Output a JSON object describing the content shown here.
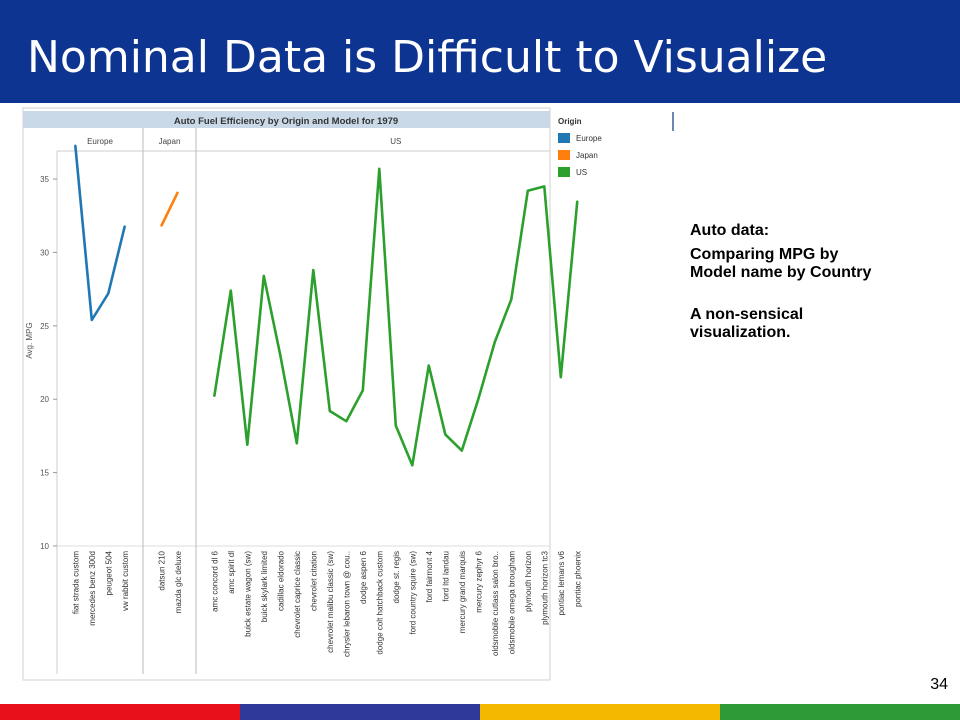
{
  "slide": {
    "title": "Nominal Data is Difficult to Visualize",
    "page_number": "34",
    "notes": [
      "Auto data:",
      "Comparing MPG by Model name by Country",
      "A non-sensical visualization."
    ],
    "footer_colors": [
      "#e8101a",
      "#2e3a9a",
      "#f5b800",
      "#2e9a36"
    ],
    "header_color": "#0d3490"
  },
  "chart_data": {
    "type": "line",
    "title": "Auto Fuel Efficiency  by Origin and Model for 1979",
    "ylabel": "Avg. MPG",
    "ylim": [
      10,
      38
    ],
    "yticks": [
      10,
      15,
      20,
      25,
      30,
      35
    ],
    "grid": false,
    "legend": {
      "title": "Origin",
      "placement": "right",
      "items": [
        "Europe",
        "Japan",
        "US"
      ]
    },
    "series": [
      {
        "name": "Europe",
        "color": "#1f77b4",
        "categories": [
          "fiat strada custom",
          "mercedes benz 300d",
          "peugeot 504",
          "vw rabbit custom"
        ],
        "values": [
          37.3,
          25.4,
          27.2,
          31.8
        ]
      },
      {
        "name": "Japan",
        "color": "#ff7f0e",
        "categories": [
          "datsun 210",
          "mazda glc deluxe"
        ],
        "values": [
          31.8,
          34.1
        ]
      },
      {
        "name": "US",
        "color": "#2ca02c",
        "categories": [
          "amc concord dl 6",
          "amc spirit dl",
          "buick estate wagon (sw)",
          "buick skylark limited",
          "cadillac eldorado",
          "chevrolet caprice classic",
          "chevrolet citation",
          "chevrolet malibu classic (sw)",
          "chrysler lebaron town @ cou..",
          "dodge aspen 6",
          "dodge colt hatchback custom",
          "dodge st. regis",
          "ford country squire (sw)",
          "ford fairmont 4",
          "ford ltd landau",
          "mercury grand marquis",
          "mercury zephyr 6",
          "oldsmobile cutlass salon bro..",
          "oldsmobile omega brougham",
          "plymouth horizon",
          "plymouth horizon tc3",
          "pontiac lemans v6",
          "pontiac phoenix"
        ],
        "values": [
          20.2,
          27.4,
          16.9,
          28.4,
          23.0,
          17.0,
          28.8,
          19.2,
          18.5,
          20.6,
          35.7,
          18.2,
          15.5,
          22.3,
          17.6,
          16.5,
          20.0,
          23.9,
          26.8,
          34.2,
          34.5,
          21.5,
          33.5
        ]
      }
    ]
  }
}
